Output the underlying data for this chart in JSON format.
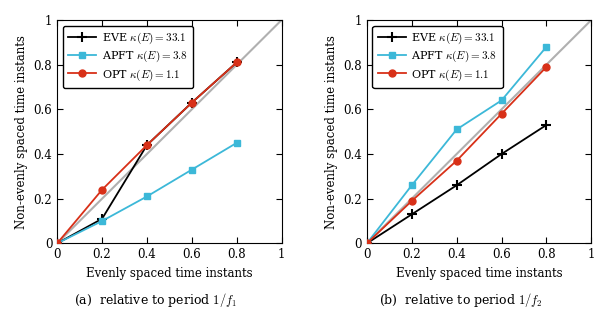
{
  "subplot_a": {
    "title": "(a)  relative to period $1/f_1$",
    "EVE": {
      "x": [
        0,
        0.2,
        0.4,
        0.6,
        0.8
      ],
      "y": [
        0,
        0.11,
        0.44,
        0.63,
        0.81
      ]
    },
    "APFT": {
      "x": [
        0,
        0.2,
        0.4,
        0.6,
        0.8
      ],
      "y": [
        0,
        0.1,
        0.21,
        0.33,
        0.45
      ]
    },
    "OPT": {
      "x": [
        0,
        0.2,
        0.4,
        0.6,
        0.8
      ],
      "y": [
        0,
        0.24,
        0.44,
        0.63,
        0.81
      ]
    }
  },
  "subplot_b": {
    "title": "(b)  relative to period $1/f_2$",
    "EVE": {
      "x": [
        0,
        0.2,
        0.4,
        0.6,
        0.8
      ],
      "y": [
        0,
        0.13,
        0.26,
        0.4,
        0.53
      ]
    },
    "APFT": {
      "x": [
        0,
        0.2,
        0.4,
        0.6,
        0.8
      ],
      "y": [
        0,
        0.26,
        0.51,
        0.64,
        0.88
      ]
    },
    "OPT": {
      "x": [
        0,
        0.2,
        0.4,
        0.6,
        0.8
      ],
      "y": [
        0,
        0.19,
        0.37,
        0.58,
        0.79
      ]
    }
  },
  "colors": {
    "EVE": "#000000",
    "APFT": "#3cb8d8",
    "OPT": "#d83018"
  },
  "diag_color": "#b0b0b0",
  "legend_labels": {
    "EVE": "EVE $\\kappa(E) = 33.1$",
    "APFT": "APFT $\\kappa(E) = 3.8$",
    "OPT": "OPT $\\kappa(E) = 1.1$"
  },
  "xlabel": "Evenly spaced time instants",
  "ylabel": "Non-evenly spaced time instants",
  "xlim": [
    0,
    1
  ],
  "ylim": [
    0,
    1
  ],
  "xticks": [
    0,
    0.2,
    0.4,
    0.6,
    0.8,
    1.0
  ],
  "yticks": [
    0,
    0.2,
    0.4,
    0.6,
    0.8,
    1.0
  ],
  "xticklabels": [
    "0",
    "0.2",
    "0.4",
    "0.6",
    "0.8",
    "1"
  ],
  "yticklabels": [
    "0",
    "0.2",
    "0.4",
    "0.6",
    "0.8",
    "1"
  ]
}
